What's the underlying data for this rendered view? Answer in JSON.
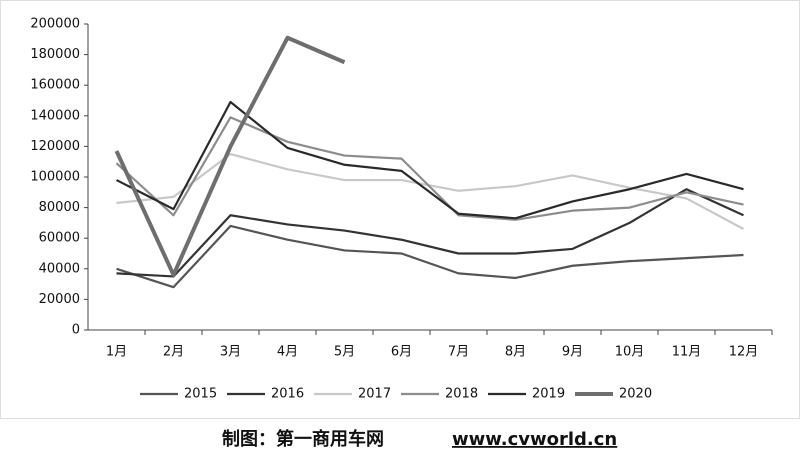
{
  "chart_data": {
    "type": "line",
    "categories": [
      "1月",
      "2月",
      "3月",
      "4月",
      "5月",
      "6月",
      "7月",
      "8月",
      "9月",
      "10月",
      "11月",
      "12月"
    ],
    "ylim": [
      0,
      200000
    ],
    "yticks": [
      0,
      20000,
      40000,
      60000,
      80000,
      100000,
      120000,
      140000,
      160000,
      180000,
      200000
    ],
    "legend": "bottom",
    "series": [
      {
        "name": "2015",
        "color": "#555555",
        "values": [
          40000,
          28000,
          68000,
          59000,
          52000,
          50000,
          37000,
          34000,
          42000,
          45000,
          47000,
          49000
        ]
      },
      {
        "name": "2016",
        "color": "#333333",
        "values": [
          37000,
          35000,
          75000,
          69000,
          65000,
          59000,
          50000,
          50000,
          53000,
          70000,
          92000,
          75000
        ]
      },
      {
        "name": "2017",
        "color": "#c8c8c8",
        "values": [
          83000,
          87000,
          115000,
          105000,
          98000,
          98000,
          91000,
          94000,
          101000,
          93000,
          86000,
          66000
        ]
      },
      {
        "name": "2018",
        "color": "#8c8c8c",
        "values": [
          109000,
          75000,
          139000,
          123000,
          114000,
          112000,
          75000,
          72000,
          78000,
          80000,
          90000,
          82000
        ]
      },
      {
        "name": "2019",
        "color": "#2a2a2a",
        "values": [
          98000,
          79000,
          149000,
          119000,
          108000,
          104000,
          76000,
          73000,
          84000,
          92000,
          102000,
          92000
        ]
      },
      {
        "name": "2020",
        "color": "#6e6e6e",
        "values": [
          117000,
          36000,
          120000,
          191000,
          175000,
          null,
          null,
          null,
          null,
          null,
          null,
          null
        ]
      }
    ]
  },
  "footer": {
    "label": "制图：第一商用车网",
    "url": "www.cvworld.cn"
  }
}
